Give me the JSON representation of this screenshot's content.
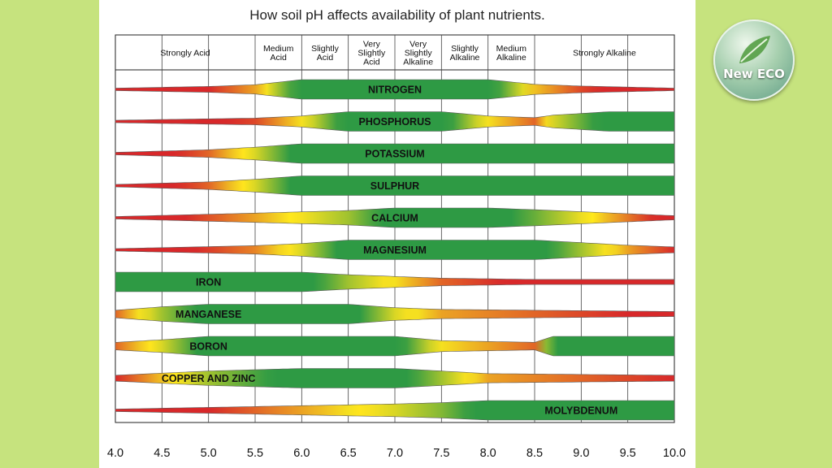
{
  "chart_data": {
    "type": "area",
    "title": "How soil pH affects availability of plant nutrients.",
    "xlim": [
      4.0,
      10.0
    ],
    "x_ticks": [
      "4.0",
      "4.5",
      "5.0",
      "5.5",
      "6.0",
      "6.5",
      "7.0",
      "7.5",
      "8.0",
      "8.5",
      "9.0",
      "9.5",
      "10.0"
    ],
    "ph_ranges": [
      {
        "label": "Strongly Acid",
        "from": 4.0,
        "to": 5.5
      },
      {
        "label": "Medium Acid",
        "from": 5.5,
        "to": 6.0
      },
      {
        "label": "Slightly Acid",
        "from": 6.0,
        "to": 6.5
      },
      {
        "label": "Very Slightly Acid",
        "from": 6.5,
        "to": 7.0
      },
      {
        "label": "Very Slightly Alkaline",
        "from": 7.0,
        "to": 7.5
      },
      {
        "label": "Slightly Alkaline",
        "from": 7.5,
        "to": 8.0
      },
      {
        "label": "Medium Alkaline",
        "from": 8.0,
        "to": 8.5
      },
      {
        "label": "Strongly Alkaline",
        "from": 8.5,
        "to": 10.0
      }
    ],
    "colors": {
      "low": "#d8282a",
      "medium": "#f5e020",
      "high": "#2e9a44"
    },
    "series": [
      {
        "name": "NITROGEN",
        "label_x": 7.0,
        "availability": [
          [
            4.0,
            0.0
          ],
          [
            5.0,
            0.2
          ],
          [
            5.5,
            0.4
          ],
          [
            6.0,
            1.0
          ],
          [
            8.0,
            1.0
          ],
          [
            8.5,
            0.45
          ],
          [
            9.0,
            0.25
          ],
          [
            10.0,
            0.0
          ]
        ]
      },
      {
        "name": "PHOSPHORUS",
        "label_x": 7.0,
        "availability": [
          [
            4.0,
            0.0
          ],
          [
            5.5,
            0.25
          ],
          [
            6.0,
            0.5
          ],
          [
            6.5,
            1.0
          ],
          [
            7.5,
            1.0
          ],
          [
            8.0,
            0.5
          ],
          [
            8.5,
            0.3
          ],
          [
            8.7,
            0.6
          ],
          [
            9.3,
            1.0
          ],
          [
            10.0,
            1.0
          ]
        ]
      },
      {
        "name": "POTASSIUM",
        "label_x": 7.0,
        "availability": [
          [
            4.0,
            0.0
          ],
          [
            5.0,
            0.3
          ],
          [
            5.5,
            0.6
          ],
          [
            6.0,
            1.0
          ],
          [
            10.0,
            1.0
          ]
        ]
      },
      {
        "name": "SULPHUR",
        "label_x": 7.0,
        "availability": [
          [
            4.0,
            0.0
          ],
          [
            5.0,
            0.3
          ],
          [
            5.5,
            0.6
          ],
          [
            6.0,
            1.0
          ],
          [
            10.0,
            1.0
          ]
        ]
      },
      {
        "name": "CALCIUM",
        "label_x": 7.0,
        "availability": [
          [
            4.0,
            0.0
          ],
          [
            5.5,
            0.4
          ],
          [
            6.5,
            0.7
          ],
          [
            7.0,
            1.0
          ],
          [
            8.0,
            1.0
          ],
          [
            8.5,
            0.8
          ],
          [
            10.0,
            0.1
          ]
        ]
      },
      {
        "name": "MAGNESIUM",
        "label_x": 7.0,
        "availability": [
          [
            4.0,
            0.0
          ],
          [
            5.5,
            0.35
          ],
          [
            6.0,
            0.6
          ],
          [
            6.5,
            1.0
          ],
          [
            8.5,
            1.0
          ],
          [
            9.5,
            0.4
          ],
          [
            10.0,
            0.2
          ]
        ]
      },
      {
        "name": "IRON",
        "label_x": 5.0,
        "availability": [
          [
            4.0,
            1.0
          ],
          [
            6.0,
            1.0
          ],
          [
            6.5,
            0.7
          ],
          [
            7.5,
            0.3
          ],
          [
            8.5,
            0.15
          ],
          [
            10.0,
            0.15
          ]
        ]
      },
      {
        "name": "MANGANESE",
        "label_x": 5.0,
        "availability": [
          [
            4.0,
            0.3
          ],
          [
            4.5,
            0.7
          ],
          [
            5.0,
            1.0
          ],
          [
            6.5,
            1.0
          ],
          [
            7.0,
            0.6
          ],
          [
            7.5,
            0.4
          ],
          [
            8.5,
            0.3
          ],
          [
            10.0,
            0.15
          ]
        ]
      },
      {
        "name": "BORON",
        "label_x": 5.0,
        "availability": [
          [
            4.0,
            0.3
          ],
          [
            4.5,
            0.6
          ],
          [
            5.0,
            1.0
          ],
          [
            7.0,
            1.0
          ],
          [
            7.5,
            0.5
          ],
          [
            8.5,
            0.3
          ],
          [
            8.7,
            1.0
          ],
          [
            10.0,
            1.0
          ]
        ]
      },
      {
        "name": "COPPER AND ZINC",
        "label_x": 5.0,
        "availability": [
          [
            4.0,
            0.2
          ],
          [
            5.0,
            0.7
          ],
          [
            6.0,
            1.0
          ],
          [
            7.0,
            1.0
          ],
          [
            8.0,
            0.4
          ],
          [
            10.0,
            0.2
          ]
        ]
      },
      {
        "name": "MOLYBDENUM",
        "label_x": 9.0,
        "availability": [
          [
            4.0,
            0.0
          ],
          [
            5.5,
            0.3
          ],
          [
            7.0,
            0.6
          ],
          [
            7.5,
            0.75
          ],
          [
            8.0,
            1.0
          ],
          [
            10.0,
            1.0
          ]
        ]
      }
    ]
  },
  "logo": {
    "text": "New ECO"
  }
}
